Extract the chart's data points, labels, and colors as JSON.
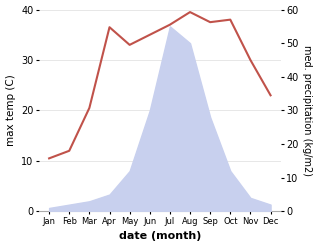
{
  "months": [
    "Jan",
    "Feb",
    "Mar",
    "Apr",
    "May",
    "Jun",
    "Jul",
    "Aug",
    "Sep",
    "Oct",
    "Nov",
    "Dec"
  ],
  "month_x": [
    0,
    1,
    2,
    3,
    4,
    5,
    6,
    7,
    8,
    9,
    10,
    11
  ],
  "temperature": [
    10.5,
    12.0,
    20.5,
    36.5,
    33.0,
    35.0,
    37.0,
    39.5,
    37.5,
    38.0,
    30.0,
    23.0
  ],
  "precipitation": [
    1.0,
    2.0,
    3.0,
    5.0,
    12.0,
    30.0,
    55.0,
    50.0,
    28.0,
    12.0,
    4.0,
    2.0
  ],
  "temp_color": "#c0524a",
  "precip_fill_color": "#c8d0ee",
  "temp_ylim": [
    0,
    40
  ],
  "precip_ylim": [
    0,
    60
  ],
  "xlabel": "date (month)",
  "ylabel_left": "max temp (C)",
  "ylabel_right": "med. precipitation (kg/m2)",
  "background_color": "#ffffff"
}
